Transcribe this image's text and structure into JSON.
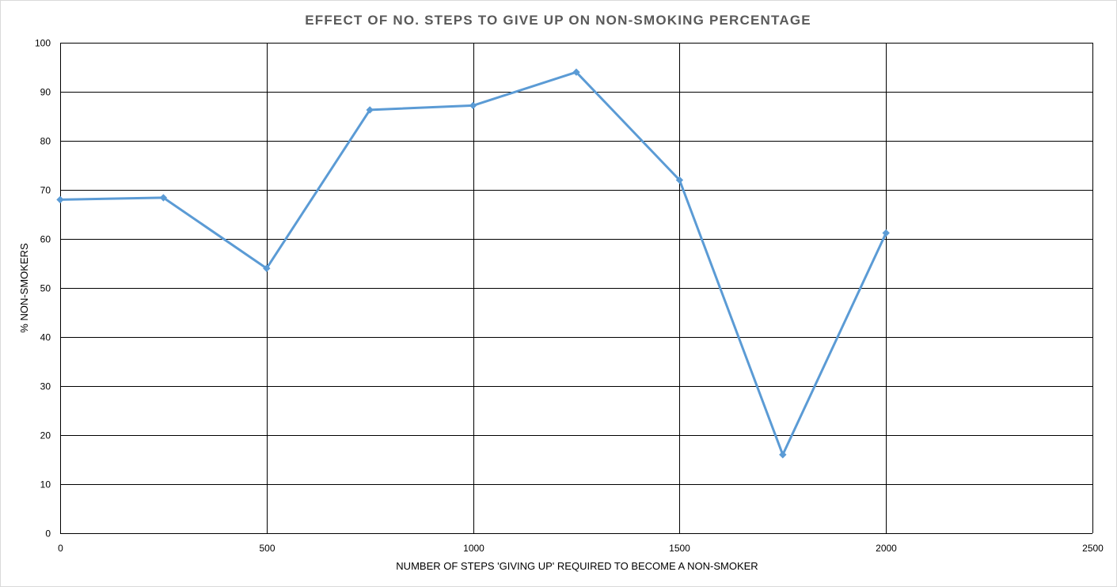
{
  "chart_data": {
    "type": "line",
    "title": "EFFECT OF NO. STEPS TO GIVE UP ON NON-SMOKING PERCENTAGE",
    "xlabel": "NUMBER OF STEPS 'GIVING UP' REQUIRED TO BECOME A NON-SMOKER",
    "ylabel": "% NON-SMOKERS",
    "xlim": [
      0,
      2500
    ],
    "ylim": [
      0,
      100
    ],
    "x_ticks": [
      0,
      500,
      1000,
      1500,
      2000,
      2500
    ],
    "y_ticks": [
      0,
      10,
      20,
      30,
      40,
      50,
      60,
      70,
      80,
      90,
      100
    ],
    "grid": true,
    "legend": "none",
    "series": [
      {
        "color": "#5b9bd5",
        "marker": "diamond",
        "x": [
          0,
          250,
          500,
          750,
          1000,
          1250,
          1500,
          1750,
          2000
        ],
        "y": [
          68,
          68.4,
          54,
          86.3,
          87.2,
          94,
          72,
          16,
          61.2
        ]
      }
    ]
  }
}
